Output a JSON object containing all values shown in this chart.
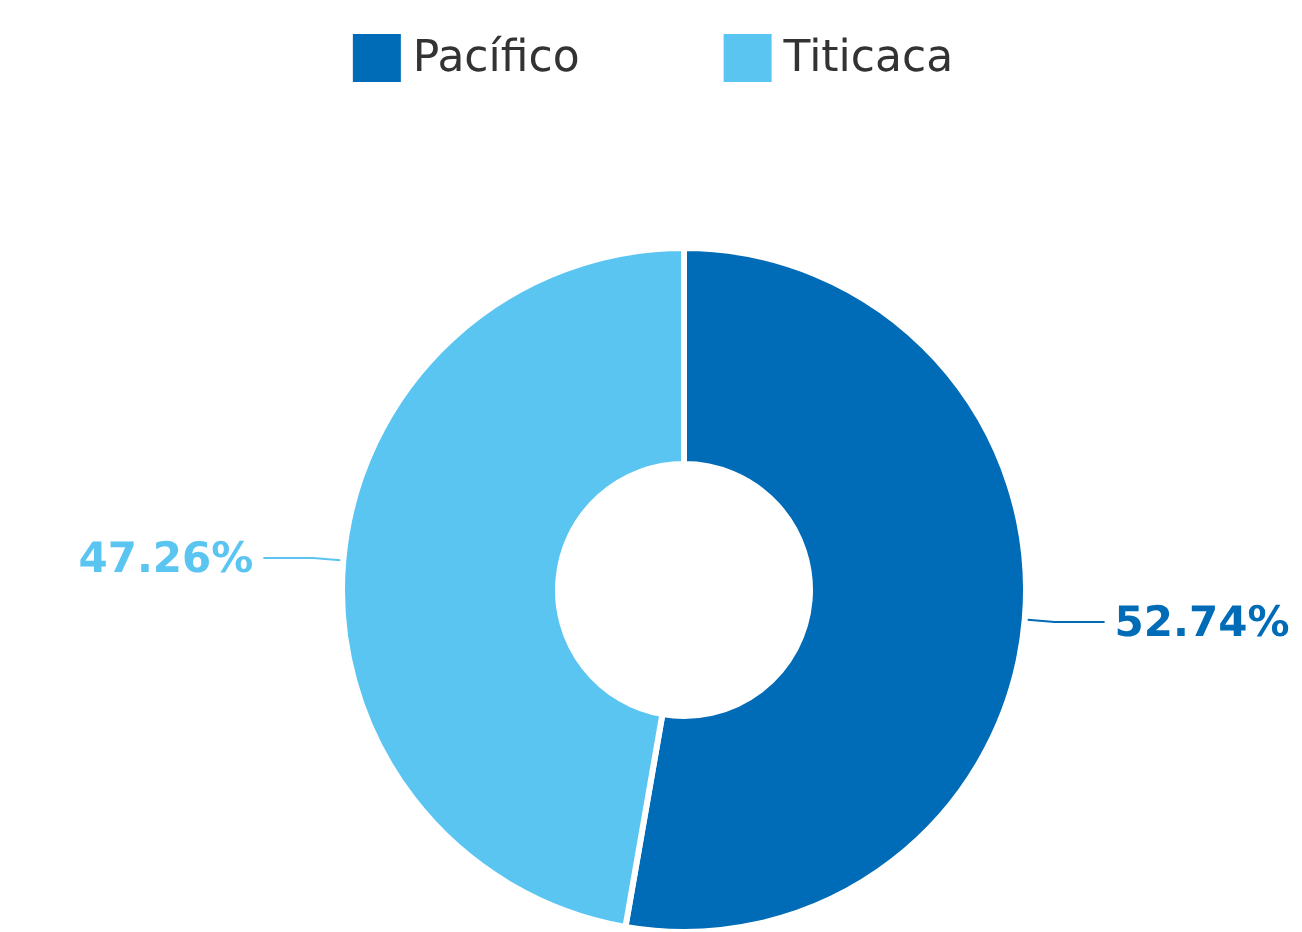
{
  "chart_data": {
    "type": "donut",
    "categories": [
      "Pacífico",
      "Titicaca"
    ],
    "values": [
      52.74,
      47.26
    ],
    "colors": [
      "#006bb6",
      "#5bc5f2"
    ],
    "value_labels": [
      "52.74%",
      "47.26%"
    ],
    "legend": "top"
  }
}
